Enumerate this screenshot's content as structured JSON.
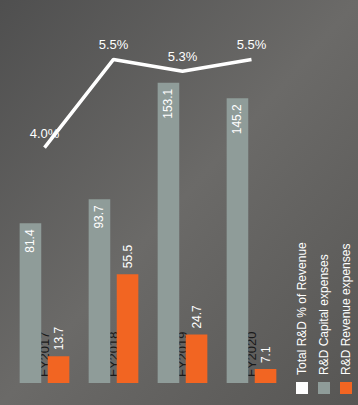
{
  "chart_data": {
    "type": "bar",
    "categories": [
      "FY2017",
      "FY2018",
      "FY2019",
      "FY2020"
    ],
    "series": [
      {
        "name": "Total R&D % of Revenue",
        "type": "line",
        "axis": "y2",
        "color": "#ffffff",
        "values": [
          4.0,
          5.5,
          5.3,
          5.5
        ],
        "value_labels": [
          "4.0%",
          "5.5%",
          "5.3%",
          "5.5%"
        ]
      },
      {
        "name": "R&D Capital expenses",
        "type": "bar",
        "color": "#8f9c99",
        "values": [
          81.4,
          93.7,
          153.1,
          145.2
        ]
      },
      {
        "name": "R&D Revenue expenses",
        "type": "bar",
        "color": "#f26522",
        "values": [
          13.7,
          55.5,
          24.7,
          7.1
        ]
      }
    ],
    "ylim": [
      0,
      180
    ],
    "yticks": [
      0,
      60,
      120,
      180
    ],
    "y2lim": [
      0,
      6
    ],
    "y2ticks": [
      0,
      2,
      4,
      6
    ],
    "grid": false,
    "legend": "bottom-right",
    "data_labels": true,
    "tick_labels": "x"
  }
}
